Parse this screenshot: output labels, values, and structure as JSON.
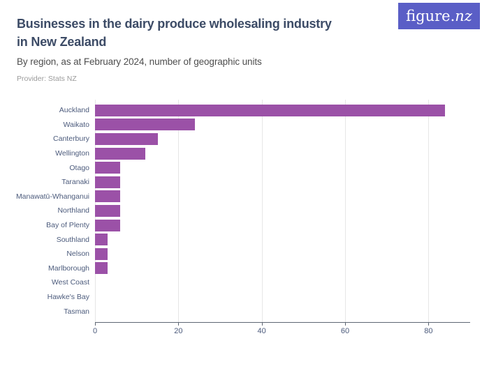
{
  "header": {
    "title_lines": [
      "Businesses in the dairy produce wholesaling industry",
      "in New Zealand"
    ],
    "subtitle": "By region, as at February 2024, number of geographic units",
    "provider": "Provider: Stats NZ",
    "logo": {
      "prefix": "figure.",
      "suffix": "nz"
    }
  },
  "colors": {
    "bar": "#9b51a7",
    "logo_bg": "#5a5ec6",
    "title": "#3c4b66",
    "label": "#4c5b7c",
    "axis": "#5d6673",
    "grid": "#e6e6e6"
  },
  "chart_data": {
    "type": "bar",
    "orientation": "horizontal",
    "title": "Businesses in the dairy produce wholesaling industry in New Zealand",
    "subtitle": "By region, as at February 2024, number of geographic units",
    "provider": "Provider: Stats NZ",
    "categories": [
      "Auckland",
      "Waikato",
      "Canterbury",
      "Wellington",
      "Otago",
      "Taranaki",
      "Manawatū-Whanganui",
      "Northland",
      "Bay of Plenty",
      "Southland",
      "Nelson",
      "Marlborough",
      "West Coast",
      "Hawke's Bay",
      "Tasman"
    ],
    "values": [
      84,
      24,
      15,
      12,
      6,
      6,
      6,
      6,
      6,
      3,
      3,
      3,
      0,
      0,
      0
    ],
    "xlabel": "",
    "ylabel": "",
    "x_ticks": [
      0,
      20,
      40,
      60,
      80
    ],
    "xlim": [
      0,
      90
    ],
    "grid": true,
    "legend": false
  }
}
